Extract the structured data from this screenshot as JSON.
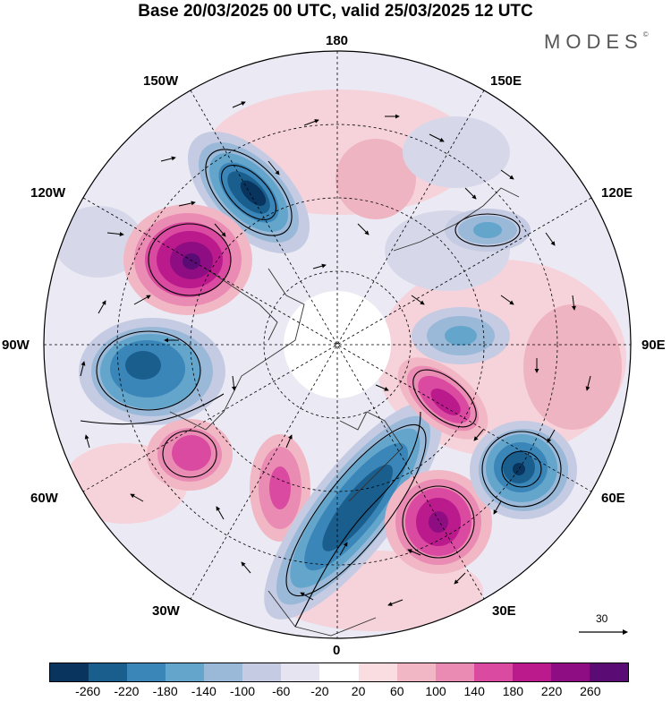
{
  "title": "Base 20/03/2025 00 UTC, valid 25/03/2025 12 UTC",
  "brand": "MODES",
  "brand_mark": "©",
  "longitude_labels": {
    "n180": "180",
    "w150": "150W",
    "e150": "150E",
    "w120": "120W",
    "e120": "120E",
    "w90": "90W",
    "e90": "90E",
    "w60": "60W",
    "e60": "60E",
    "w30": "30W",
    "e30": "30E",
    "s0": "0"
  },
  "wind_reference_vector": "30",
  "colorbar": {
    "colors": [
      "#08345e",
      "#1a5e8e",
      "#3a86b8",
      "#64a5cc",
      "#9ab8d8",
      "#c4cbe2",
      "#e6e4f1",
      "#ffffff",
      "#f9dde0",
      "#f2b7c4",
      "#ea8bb3",
      "#d94aa0",
      "#bb1a8c",
      "#8f0d82",
      "#5a0c74"
    ],
    "ticks": [
      "-260",
      "-220",
      "-180",
      "-140",
      "-100",
      "-60",
      "-20",
      "20",
      "60",
      "100",
      "140",
      "180",
      "220",
      "260"
    ]
  }
}
